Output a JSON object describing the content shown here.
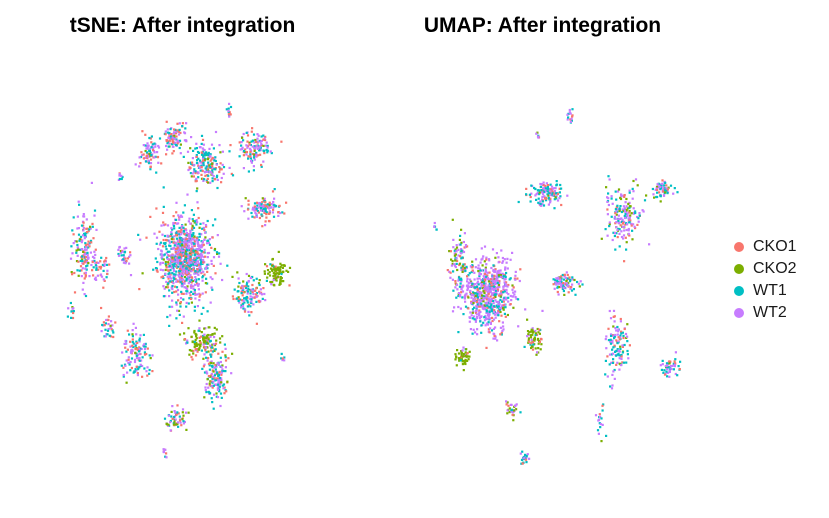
{
  "chart_data": [
    {
      "type": "scatter",
      "title": "tSNE: After integration",
      "xlabel": "",
      "ylabel": "",
      "axes_visible": false,
      "series": [
        {
          "name": "CKO1",
          "color": "#F8766D"
        },
        {
          "name": "CKO2",
          "color": "#7CAE00"
        },
        {
          "name": "WT1",
          "color": "#00BFC4"
        },
        {
          "name": "WT2",
          "color": "#C77CFF"
        }
      ],
      "clusters": [
        {
          "x": 0.0,
          "y": 0.07,
          "rx": 0.15,
          "ry": 0.17,
          "n": 950,
          "mix": [
            0.22,
            0.04,
            0.3,
            0.44
          ]
        },
        {
          "x": -0.62,
          "y": 0.12,
          "rx": 0.06,
          "ry": 0.16,
          "n": 150,
          "mix": [
            0.25,
            0.05,
            0.3,
            0.4
          ]
        },
        {
          "x": -0.52,
          "y": 0.02,
          "rx": 0.05,
          "ry": 0.06,
          "n": 40,
          "mix": [
            0.25,
            0.05,
            0.3,
            0.4
          ]
        },
        {
          "x": -0.37,
          "y": 0.08,
          "rx": 0.04,
          "ry": 0.04,
          "n": 30,
          "mix": [
            0.25,
            0.05,
            0.3,
            0.4
          ]
        },
        {
          "x": -0.22,
          "y": 0.55,
          "rx": 0.05,
          "ry": 0.07,
          "n": 80,
          "mix": [
            0.25,
            0.05,
            0.3,
            0.4
          ]
        },
        {
          "x": -0.06,
          "y": 0.63,
          "rx": 0.06,
          "ry": 0.07,
          "n": 90,
          "mix": [
            0.25,
            0.05,
            0.3,
            0.4
          ]
        },
        {
          "x": 0.14,
          "y": 0.5,
          "rx": 0.11,
          "ry": 0.1,
          "n": 200,
          "mix": [
            0.25,
            0.1,
            0.3,
            0.35
          ]
        },
        {
          "x": 0.44,
          "y": 0.58,
          "rx": 0.08,
          "ry": 0.07,
          "n": 120,
          "mix": [
            0.25,
            0.1,
            0.3,
            0.35
          ]
        },
        {
          "x": 0.5,
          "y": 0.3,
          "rx": 0.1,
          "ry": 0.05,
          "n": 120,
          "mix": [
            0.25,
            0.05,
            0.3,
            0.4
          ]
        },
        {
          "x": 0.58,
          "y": 0.0,
          "rx": 0.06,
          "ry": 0.05,
          "n": 100,
          "mix": [
            0.08,
            0.8,
            0.05,
            0.07
          ]
        },
        {
          "x": 0.4,
          "y": -0.1,
          "rx": 0.09,
          "ry": 0.08,
          "n": 120,
          "mix": [
            0.25,
            0.1,
            0.3,
            0.35
          ]
        },
        {
          "x": 0.12,
          "y": -0.32,
          "rx": 0.09,
          "ry": 0.07,
          "n": 140,
          "mix": [
            0.2,
            0.6,
            0.1,
            0.1
          ]
        },
        {
          "x": -0.3,
          "y": -0.38,
          "rx": 0.08,
          "ry": 0.1,
          "n": 120,
          "mix": [
            0.25,
            0.05,
            0.3,
            0.4
          ]
        },
        {
          "x": 0.2,
          "y": -0.48,
          "rx": 0.08,
          "ry": 0.1,
          "n": 150,
          "mix": [
            0.25,
            0.1,
            0.3,
            0.35
          ]
        },
        {
          "x": -0.48,
          "y": -0.25,
          "rx": 0.03,
          "ry": 0.05,
          "n": 30,
          "mix": [
            0.25,
            0.05,
            0.3,
            0.4
          ]
        },
        {
          "x": -0.05,
          "y": -0.68,
          "rx": 0.06,
          "ry": 0.05,
          "n": 60,
          "mix": [
            0.25,
            0.25,
            0.2,
            0.3
          ]
        },
        {
          "x": 0.28,
          "y": 0.75,
          "rx": 0.01,
          "ry": 0.03,
          "n": 12,
          "mix": [
            0.25,
            0.05,
            0.3,
            0.4
          ]
        },
        {
          "x": -0.7,
          "y": -0.17,
          "rx": 0.02,
          "ry": 0.03,
          "n": 12,
          "mix": [
            0.25,
            0.05,
            0.3,
            0.4
          ]
        },
        {
          "x": -0.12,
          "y": -0.85,
          "rx": 0.02,
          "ry": 0.02,
          "n": 8,
          "mix": [
            0.25,
            0.05,
            0.3,
            0.4
          ]
        },
        {
          "x": -0.4,
          "y": 0.45,
          "rx": 0.02,
          "ry": 0.02,
          "n": 8,
          "mix": [
            0.25,
            0.05,
            0.3,
            0.4
          ]
        },
        {
          "x": 0.62,
          "y": -0.4,
          "rx": 0.01,
          "ry": 0.03,
          "n": 6,
          "mix": [
            0.25,
            0.05,
            0.3,
            0.4
          ]
        }
      ]
    },
    {
      "type": "scatter",
      "title": "UMAP: After integration",
      "xlabel": "",
      "ylabel": "",
      "axes_visible": false,
      "series": [
        {
          "name": "CKO1",
          "color": "#F8766D"
        },
        {
          "name": "CKO2",
          "color": "#7CAE00"
        },
        {
          "name": "WT1",
          "color": "#00BFC4"
        },
        {
          "name": "WT2",
          "color": "#C77CFF"
        }
      ],
      "clusters": [
        {
          "x": -0.4,
          "y": -0.1,
          "rx": 0.14,
          "ry": 0.16,
          "n": 650,
          "mix": [
            0.12,
            0.04,
            0.2,
            0.64
          ]
        },
        {
          "x": -0.58,
          "y": 0.02,
          "rx": 0.05,
          "ry": 0.14,
          "n": 100,
          "mix": [
            0.15,
            0.25,
            0.25,
            0.35
          ]
        },
        {
          "x": -0.05,
          "y": 0.38,
          "rx": 0.09,
          "ry": 0.05,
          "n": 130,
          "mix": [
            0.15,
            0.05,
            0.4,
            0.4
          ]
        },
        {
          "x": 0.42,
          "y": 0.28,
          "rx": 0.1,
          "ry": 0.12,
          "n": 180,
          "mix": [
            0.15,
            0.15,
            0.3,
            0.4
          ]
        },
        {
          "x": 0.65,
          "y": 0.4,
          "rx": 0.06,
          "ry": 0.04,
          "n": 60,
          "mix": [
            0.15,
            0.1,
            0.3,
            0.45
          ]
        },
        {
          "x": 0.06,
          "y": -0.05,
          "rx": 0.07,
          "ry": 0.04,
          "n": 90,
          "mix": [
            0.2,
            0.05,
            0.35,
            0.4
          ]
        },
        {
          "x": -0.12,
          "y": -0.32,
          "rx": 0.04,
          "ry": 0.05,
          "n": 60,
          "mix": [
            0.15,
            0.7,
            0.08,
            0.07
          ]
        },
        {
          "x": -0.55,
          "y": -0.4,
          "rx": 0.04,
          "ry": 0.04,
          "n": 50,
          "mix": [
            0.1,
            0.8,
            0.05,
            0.05
          ]
        },
        {
          "x": 0.38,
          "y": -0.35,
          "rx": 0.06,
          "ry": 0.14,
          "n": 120,
          "mix": [
            0.15,
            0.05,
            0.4,
            0.4
          ]
        },
        {
          "x": 0.7,
          "y": -0.45,
          "rx": 0.05,
          "ry": 0.04,
          "n": 50,
          "mix": [
            0.15,
            0.05,
            0.4,
            0.4
          ]
        },
        {
          "x": -0.25,
          "y": -0.65,
          "rx": 0.05,
          "ry": 0.03,
          "n": 30,
          "mix": [
            0.15,
            0.25,
            0.3,
            0.3
          ]
        },
        {
          "x": -0.18,
          "y": -0.88,
          "rx": 0.02,
          "ry": 0.03,
          "n": 25,
          "mix": [
            0.15,
            0.05,
            0.4,
            0.4
          ]
        },
        {
          "x": 0.1,
          "y": 0.75,
          "rx": 0.02,
          "ry": 0.03,
          "n": 15,
          "mix": [
            0.15,
            0.05,
            0.4,
            0.4
          ]
        },
        {
          "x": -0.1,
          "y": 0.65,
          "rx": 0.01,
          "ry": 0.02,
          "n": 6,
          "mix": [
            0.15,
            0.05,
            0.4,
            0.4
          ]
        },
        {
          "x": -0.72,
          "y": 0.22,
          "rx": 0.01,
          "ry": 0.02,
          "n": 6,
          "mix": [
            0.15,
            0.05,
            0.4,
            0.4
          ]
        },
        {
          "x": 0.28,
          "y": -0.7,
          "rx": 0.02,
          "ry": 0.06,
          "n": 18,
          "mix": [
            0.15,
            0.05,
            0.4,
            0.4
          ]
        }
      ]
    }
  ],
  "legend": {
    "items": [
      {
        "label": "CKO1",
        "color": "#F8766D"
      },
      {
        "label": "CKO2",
        "color": "#7CAE00"
      },
      {
        "label": "WT1",
        "color": "#00BFC4"
      },
      {
        "label": "WT2",
        "color": "#C77CFF"
      }
    ]
  }
}
